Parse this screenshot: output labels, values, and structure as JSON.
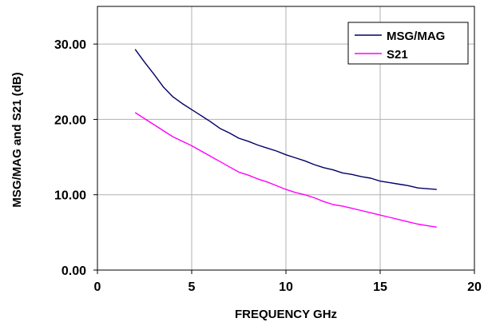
{
  "chart_data": {
    "type": "line",
    "xlabel": "FREQUENCY GHz",
    "ylabel": "MSG/MAG and S21 (dB)",
    "xlim": [
      0,
      20
    ],
    "ylim": [
      0,
      35
    ],
    "x_ticks": [
      0,
      5,
      10,
      15,
      20
    ],
    "x_tick_labels": [
      "0",
      "5",
      "10",
      "15",
      "20"
    ],
    "y_ticks": [
      0,
      10,
      20,
      30
    ],
    "y_tick_labels": [
      "0.00",
      "10.00",
      "20.00",
      "30.00"
    ],
    "grid": true,
    "legend_position": "top-right",
    "series": [
      {
        "name": "MSG/MAG",
        "color": "#000066",
        "x": [
          2,
          2.5,
          3,
          3.5,
          4,
          4.5,
          5,
          5.5,
          6,
          6.5,
          7,
          7.5,
          8,
          8.5,
          9,
          9.5,
          10,
          10.5,
          11,
          11.5,
          12,
          12.5,
          13,
          13.5,
          14,
          14.5,
          15,
          15.5,
          16,
          16.5,
          17,
          17.5,
          18
        ],
        "values": [
          29.3,
          27.6,
          26.0,
          24.3,
          23.0,
          22.1,
          21.3,
          20.5,
          19.7,
          18.8,
          18.2,
          17.5,
          17.1,
          16.6,
          16.2,
          15.8,
          15.3,
          14.9,
          14.5,
          14.0,
          13.6,
          13.3,
          12.9,
          12.7,
          12.4,
          12.2,
          11.8,
          11.6,
          11.4,
          11.2,
          10.9,
          10.8,
          10.7
        ]
      },
      {
        "name": "S21",
        "color": "#ff00ff",
        "x": [
          2,
          2.5,
          3,
          3.5,
          4,
          4.5,
          5,
          5.5,
          6,
          6.5,
          7,
          7.5,
          8,
          8.5,
          9,
          9.5,
          10,
          10.5,
          11,
          11.5,
          12,
          12.5,
          13,
          13.5,
          14,
          14.5,
          15,
          15.5,
          16,
          16.5,
          17,
          17.5,
          18
        ],
        "values": [
          20.9,
          20.1,
          19.3,
          18.5,
          17.7,
          17.1,
          16.5,
          15.8,
          15.1,
          14.4,
          13.7,
          13.0,
          12.6,
          12.1,
          11.7,
          11.2,
          10.7,
          10.3,
          10.0,
          9.6,
          9.1,
          8.7,
          8.5,
          8.2,
          7.9,
          7.6,
          7.3,
          7.0,
          6.7,
          6.4,
          6.1,
          5.9,
          5.7
        ]
      }
    ]
  }
}
